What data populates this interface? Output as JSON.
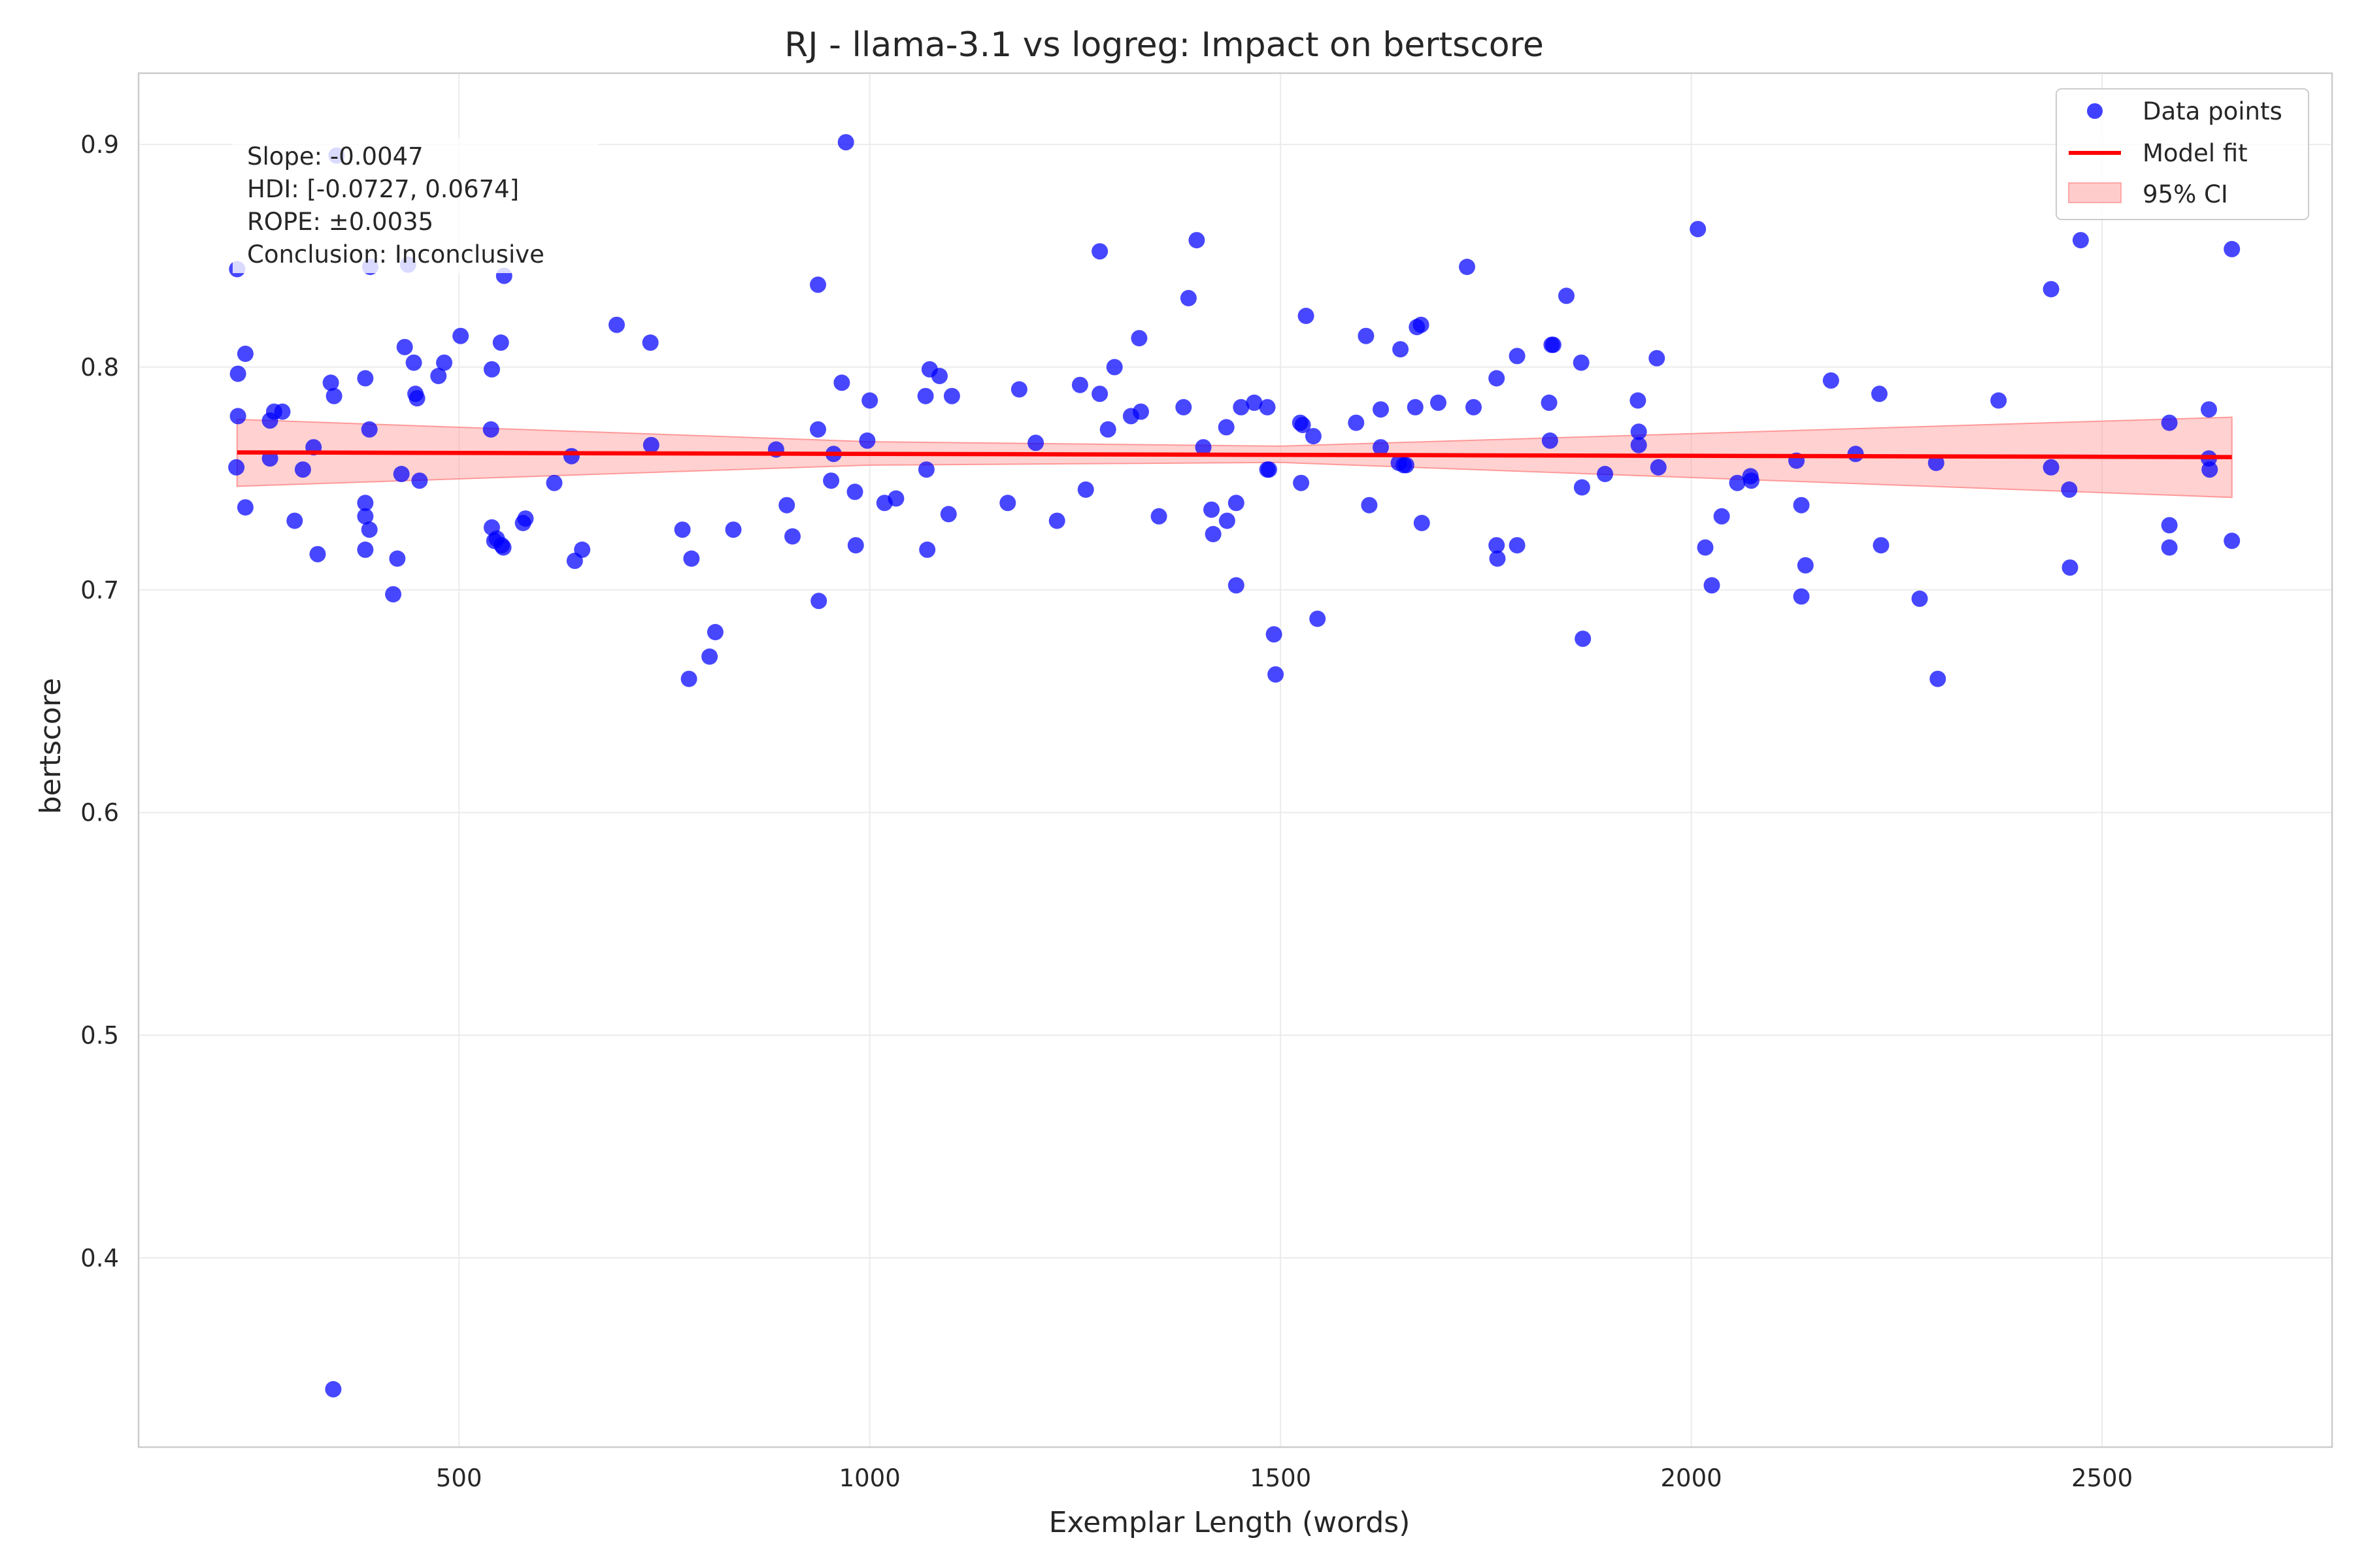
{
  "chart_data": {
    "type": "scatter",
    "title": "RJ - llama-3.1 vs logreg: Impact on bertscore",
    "xlabel": "Exemplar Length (words)",
    "ylabel": "bertscore",
    "xlim": [
      110,
      2780
    ],
    "ylim": [
      0.315,
      0.932
    ],
    "x_ticks": [
      500,
      1000,
      1500,
      2000,
      2500
    ],
    "y_ticks": [
      0.4,
      0.5,
      0.6,
      0.7,
      0.8,
      0.9
    ],
    "grid": true,
    "legend_position": "top-right",
    "legend": {
      "points": "Data points",
      "fit": "Model fit",
      "ci": "95% CI"
    },
    "annotations": [
      "Slope: -0.0047",
      "HDI: [-0.0727, 0.0674]",
      "ROPE: ±0.0035",
      "Conclusion: Inconclusive"
    ],
    "colors": {
      "points": "#0000ff",
      "fit": "#ff0000",
      "ci": "#ff9999"
    },
    "fit": {
      "x": [
        230,
        2658
      ],
      "y": [
        0.7617,
        0.7596
      ]
    },
    "ci_band": {
      "x": [
        230,
        1000,
        1500,
        2658
      ],
      "lower": [
        0.7465,
        0.756,
        0.7572,
        0.7415
      ],
      "upper": [
        0.7765,
        0.7665,
        0.7645,
        0.7775
      ]
    },
    "points": [
      [
        230,
        0.844
      ],
      [
        231,
        0.797
      ],
      [
        231,
        0.778
      ],
      [
        229,
        0.755
      ],
      [
        240,
        0.806
      ],
      [
        240,
        0.737
      ],
      [
        270,
        0.776
      ],
      [
        270,
        0.759
      ],
      [
        275,
        0.78
      ],
      [
        285,
        0.78
      ],
      [
        300,
        0.731
      ],
      [
        310,
        0.754
      ],
      [
        323,
        0.764
      ],
      [
        328,
        0.716
      ],
      [
        344,
        0.793
      ],
      [
        348,
        0.787
      ],
      [
        347,
        0.341
      ],
      [
        351,
        0.895
      ],
      [
        386,
        0.795
      ],
      [
        386,
        0.739
      ],
      [
        386,
        0.733
      ],
      [
        386,
        0.718
      ],
      [
        391,
        0.772
      ],
      [
        391,
        0.727
      ],
      [
        392,
        0.845
      ],
      [
        420,
        0.698
      ],
      [
        425,
        0.714
      ],
      [
        430,
        0.752
      ],
      [
        434,
        0.809
      ],
      [
        438,
        0.846
      ],
      [
        445,
        0.802
      ],
      [
        447,
        0.788
      ],
      [
        449,
        0.786
      ],
      [
        452,
        0.749
      ],
      [
        475,
        0.796
      ],
      [
        482,
        0.802
      ],
      [
        502,
        0.814
      ],
      [
        539,
        0.772
      ],
      [
        540,
        0.799
      ],
      [
        540,
        0.728
      ],
      [
        543,
        0.722
      ],
      [
        546,
        0.723
      ],
      [
        551,
        0.811
      ],
      [
        552,
        0.72
      ],
      [
        554,
        0.719
      ],
      [
        555,
        0.841
      ],
      [
        578,
        0.73
      ],
      [
        581,
        0.732
      ],
      [
        616,
        0.748
      ],
      [
        637,
        0.76
      ],
      [
        641,
        0.713
      ],
      [
        650,
        0.718
      ],
      [
        692,
        0.819
      ],
      [
        733,
        0.811
      ],
      [
        734,
        0.765
      ],
      [
        772,
        0.727
      ],
      [
        780,
        0.66
      ],
      [
        783,
        0.714
      ],
      [
        805,
        0.67
      ],
      [
        812,
        0.681
      ],
      [
        834,
        0.727
      ],
      [
        886,
        0.763
      ],
      [
        899,
        0.738
      ],
      [
        906,
        0.724
      ],
      [
        937,
        0.837
      ],
      [
        937,
        0.772
      ],
      [
        938,
        0.695
      ],
      [
        953,
        0.749
      ],
      [
        956,
        0.761
      ],
      [
        966,
        0.793
      ],
      [
        971,
        0.901
      ],
      [
        982,
        0.744
      ],
      [
        983,
        0.72
      ],
      [
        997,
        0.767
      ],
      [
        1000,
        0.785
      ],
      [
        1018,
        0.739
      ],
      [
        1032,
        0.741
      ],
      [
        1068,
        0.787
      ],
      [
        1069,
        0.754
      ],
      [
        1070,
        0.718
      ],
      [
        1073,
        0.799
      ],
      [
        1085,
        0.796
      ],
      [
        1096,
        0.734
      ],
      [
        1100,
        0.787
      ],
      [
        1168,
        0.739
      ],
      [
        1182,
        0.79
      ],
      [
        1202,
        0.766
      ],
      [
        1228,
        0.731
      ],
      [
        1256,
        0.792
      ],
      [
        1263,
        0.745
      ],
      [
        1280,
        0.852
      ],
      [
        1280,
        0.788
      ],
      [
        1290,
        0.772
      ],
      [
        1298,
        0.8
      ],
      [
        1318,
        0.778
      ],
      [
        1328,
        0.813
      ],
      [
        1330,
        0.78
      ],
      [
        1352,
        0.733
      ],
      [
        1382,
        0.782
      ],
      [
        1388,
        0.831
      ],
      [
        1398,
        0.857
      ],
      [
        1406,
        0.764
      ],
      [
        1416,
        0.736
      ],
      [
        1418,
        0.725
      ],
      [
        1434,
        0.773
      ],
      [
        1435,
        0.731
      ],
      [
        1446,
        0.739
      ],
      [
        1446,
        0.702
      ],
      [
        1452,
        0.782
      ],
      [
        1468,
        0.784
      ],
      [
        1484,
        0.754
      ],
      [
        1484,
        0.782
      ],
      [
        1486,
        0.754
      ],
      [
        1492,
        0.68
      ],
      [
        1494,
        0.662
      ],
      [
        1524,
        0.775
      ],
      [
        1525,
        0.748
      ],
      [
        1527,
        0.774
      ],
      [
        1531,
        0.823
      ],
      [
        1540,
        0.769
      ],
      [
        1545,
        0.687
      ],
      [
        1592,
        0.775
      ],
      [
        1604,
        0.814
      ],
      [
        1608,
        0.738
      ],
      [
        1622,
        0.781
      ],
      [
        1622,
        0.764
      ],
      [
        1644,
        0.757
      ],
      [
        1646,
        0.808
      ],
      [
        1650,
        0.756
      ],
      [
        1653,
        0.756
      ],
      [
        1664,
        0.782
      ],
      [
        1666,
        0.818
      ],
      [
        1671,
        0.819
      ],
      [
        1672,
        0.73
      ],
      [
        1692,
        0.784
      ],
      [
        1727,
        0.845
      ],
      [
        1735,
        0.782
      ],
      [
        1763,
        0.795
      ],
      [
        1763,
        0.72
      ],
      [
        1764,
        0.714
      ],
      [
        1788,
        0.805
      ],
      [
        1788,
        0.72
      ],
      [
        1827,
        0.784
      ],
      [
        1828,
        0.767
      ],
      [
        1830,
        0.81
      ],
      [
        1832,
        0.81
      ],
      [
        1848,
        0.832
      ],
      [
        1866,
        0.802
      ],
      [
        1867,
        0.746
      ],
      [
        1868,
        0.678
      ],
      [
        1895,
        0.752
      ],
      [
        1935,
        0.785
      ],
      [
        1936,
        0.771
      ],
      [
        1936,
        0.765
      ],
      [
        1958,
        0.804
      ],
      [
        1960,
        0.755
      ],
      [
        2008,
        0.862
      ],
      [
        2017,
        0.719
      ],
      [
        2025,
        0.702
      ],
      [
        2037,
        0.733
      ],
      [
        2056,
        0.748
      ],
      [
        2072,
        0.751
      ],
      [
        2073,
        0.749
      ],
      [
        2128,
        0.758
      ],
      [
        2134,
        0.738
      ],
      [
        2134,
        0.697
      ],
      [
        2139,
        0.711
      ],
      [
        2170,
        0.794
      ],
      [
        2200,
        0.761
      ],
      [
        2229,
        0.788
      ],
      [
        2231,
        0.72
      ],
      [
        2278,
        0.696
      ],
      [
        2298,
        0.757
      ],
      [
        2300,
        0.66
      ],
      [
        2374,
        0.785
      ],
      [
        2438,
        0.835
      ],
      [
        2438,
        0.755
      ],
      [
        2460,
        0.745
      ],
      [
        2461,
        0.71
      ],
      [
        2474,
        0.857
      ],
      [
        2582,
        0.775
      ],
      [
        2582,
        0.729
      ],
      [
        2582,
        0.719
      ],
      [
        2630,
        0.781
      ],
      [
        2630,
        0.759
      ],
      [
        2631,
        0.754
      ],
      [
        2658,
        0.853
      ],
      [
        2658,
        0.722
      ]
    ]
  }
}
